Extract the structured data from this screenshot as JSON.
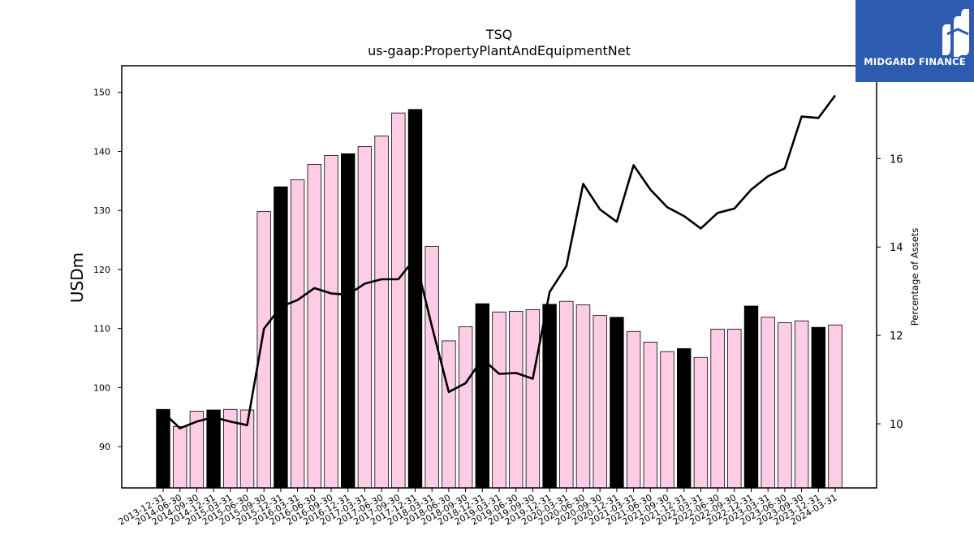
{
  "chart_data": {
    "type": "bar",
    "title": "TSQ",
    "subtitle": "us-gaap:PropertyPlantAndEquipmentNet",
    "ylabel": "USDm",
    "y2label": "Percentage of Assets",
    "ylim": [
      83,
      154.5
    ],
    "y2lim": [
      8.55,
      18.1
    ],
    "yticks": [
      90,
      100,
      110,
      120,
      130,
      140,
      150
    ],
    "y2ticks": [
      10,
      12,
      14,
      16
    ],
    "grid": false,
    "categories": [
      "2013-12-31",
      "2014-06-30",
      "2014-09-30",
      "2014-12-31",
      "2015-03-31",
      "2015-06-30",
      "2015-09-30",
      "2015-12-31",
      "2016-03-31",
      "2016-06-30",
      "2016-09-30",
      "2016-12-31",
      "2017-03-31",
      "2017-06-30",
      "2017-09-30",
      "2017-12-31",
      "2018-03-31",
      "2018-06-30",
      "2018-09-30",
      "2018-12-31",
      "2019-03-31",
      "2019-06-30",
      "2019-09-30",
      "2019-12-31",
      "2020-03-31",
      "2020-06-30",
      "2020-09-30",
      "2020-12-31",
      "2021-03-31",
      "2021-06-30",
      "2021-09-30",
      "2021-12-31",
      "2022-03-31",
      "2022-06-30",
      "2022-09-30",
      "2022-12-31",
      "2023-03-31",
      "2023-06-30",
      "2023-09-30",
      "2023-12-31",
      "2024-03-31"
    ],
    "series": [
      {
        "type": "bar",
        "values": [
          96.3,
          93.4,
          96.0,
          96.2,
          96.3,
          96.2,
          129.8,
          134.0,
          135.2,
          137.8,
          139.3,
          139.6,
          140.8,
          142.6,
          146.5,
          147.1,
          123.9,
          107.9,
          110.3,
          114.2,
          112.8,
          112.9,
          113.2,
          114.1,
          114.6,
          114.0,
          112.2,
          111.9,
          109.5,
          107.7,
          106.1,
          106.6,
          105.1,
          109.9,
          109.9,
          113.8,
          111.9,
          111.0,
          111.3,
          110.2,
          110.6
        ],
        "highlight": [
          true,
          false,
          false,
          true,
          false,
          false,
          false,
          true,
          false,
          false,
          false,
          true,
          false,
          false,
          false,
          true,
          false,
          false,
          false,
          true,
          false,
          false,
          false,
          true,
          false,
          false,
          false,
          true,
          false,
          false,
          false,
          true,
          false,
          false,
          false,
          true,
          false,
          false,
          false,
          true,
          false
        ],
        "color": "#ffcce6",
        "highlight_color": "#000000",
        "edge_color": "#000000"
      },
      {
        "type": "line",
        "axis": "right",
        "values": [
          10.26,
          9.9,
          10.05,
          10.15,
          10.05,
          9.97,
          12.15,
          12.65,
          12.8,
          13.07,
          12.95,
          12.92,
          13.17,
          13.27,
          13.27,
          13.75,
          12.2,
          10.72,
          10.92,
          11.47,
          11.13,
          11.15,
          11.02,
          12.98,
          13.57,
          15.43,
          14.85,
          14.57,
          15.85,
          15.3,
          14.9,
          14.7,
          14.42,
          14.77,
          14.87,
          15.3,
          15.6,
          15.78,
          16.95,
          16.92,
          17.43
        ],
        "color": "#000000"
      }
    ]
  },
  "logo": {
    "text": "MIDGARD FINANCE",
    "icon": "midgard-logo-icon",
    "background": "#2d5bb0"
  }
}
